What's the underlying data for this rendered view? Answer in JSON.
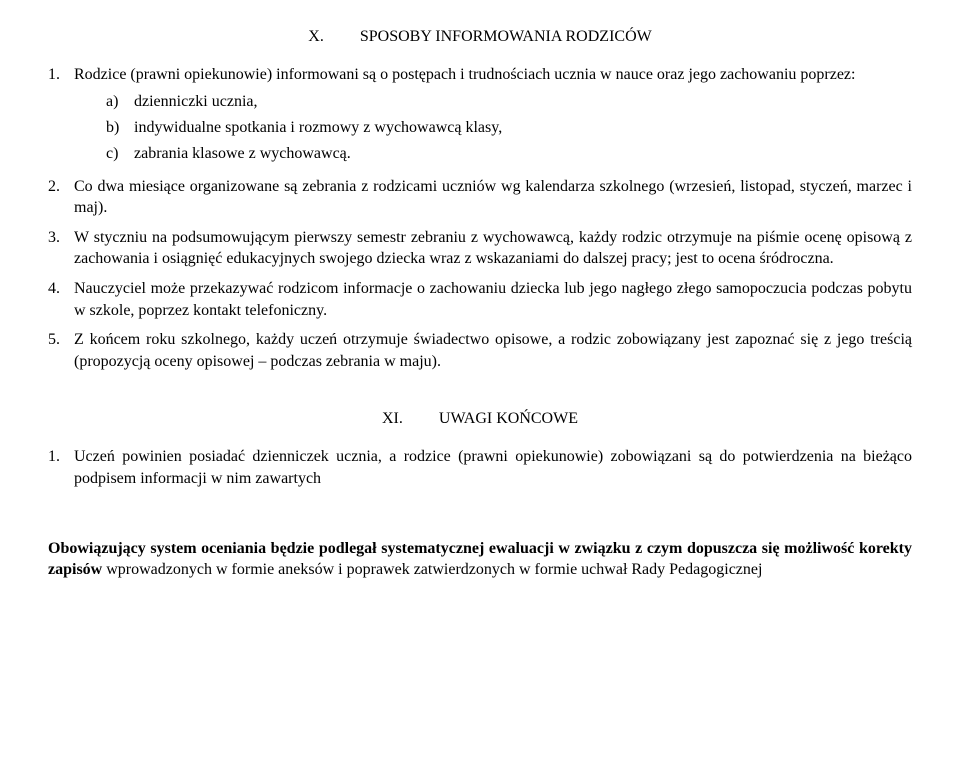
{
  "sectionX": {
    "num": "X.",
    "title": "SPOSOBY INFORMOWANIA RODZICÓW",
    "items": [
      {
        "num": "1.",
        "text": "Rodzice (prawni opiekunowie) informowani są o postępach i trudnościach ucznia w nauce oraz jego zachowaniu poprzez:",
        "sub": [
          {
            "letter": "a)",
            "text": "dzienniczki ucznia,"
          },
          {
            "letter": "b)",
            "text": "indywidualne spotkania i rozmowy z wychowawcą klasy,"
          },
          {
            "letter": "c)",
            "text": "zabrania klasowe z wychowawcą."
          }
        ]
      },
      {
        "num": "2.",
        "text": "Co dwa miesiące organizowane są zebrania z rodzicami uczniów wg kalendarza szkolnego (wrzesień, listopad, styczeń, marzec i maj)."
      },
      {
        "num": "3.",
        "text": "W styczniu na podsumowującym pierwszy semestr zebraniu z wychowawcą, każdy rodzic otrzymuje na piśmie ocenę opisową z zachowania i osiągnięć edukacyjnych swojego dziecka wraz z wskazaniami do dalszej pracy; jest to ocena śródroczna."
      },
      {
        "num": "4.",
        "text": "Nauczyciel może przekazywać rodzicom informacje o zachowaniu dziecka lub jego nagłego złego samopoczucia podczas pobytu w szkole, poprzez kontakt telefoniczny."
      },
      {
        "num": "5.",
        "text": "Z końcem roku szkolnego, każdy uczeń otrzymuje świadectwo opisowe, a rodzic zobowiązany jest zapoznać się z jego treścią (propozycją oceny opisowej – podczas zebrania w maju)."
      }
    ]
  },
  "sectionXI": {
    "num": "XI.",
    "title": "UWAGI KOŃCOWE",
    "items": [
      {
        "num": "1.",
        "text": "Uczeń powinien posiadać dzienniczek ucznia, a rodzice (prawni opiekunowie) zobowiązani są do potwierdzenia na bieżąco podpisem informacji w nim zawartych"
      }
    ]
  },
  "bottom": {
    "part1_bold": "Obowiązujący system oceniania będzie podlegał systematycznej ewaluacji w związku z czym dopuszcza się możliwość korekty zapisów ",
    "part2": "wprowadzonych w formie aneksów i poprawek zatwierdzonych w formie uchwał Rady Pedagogicznej"
  }
}
